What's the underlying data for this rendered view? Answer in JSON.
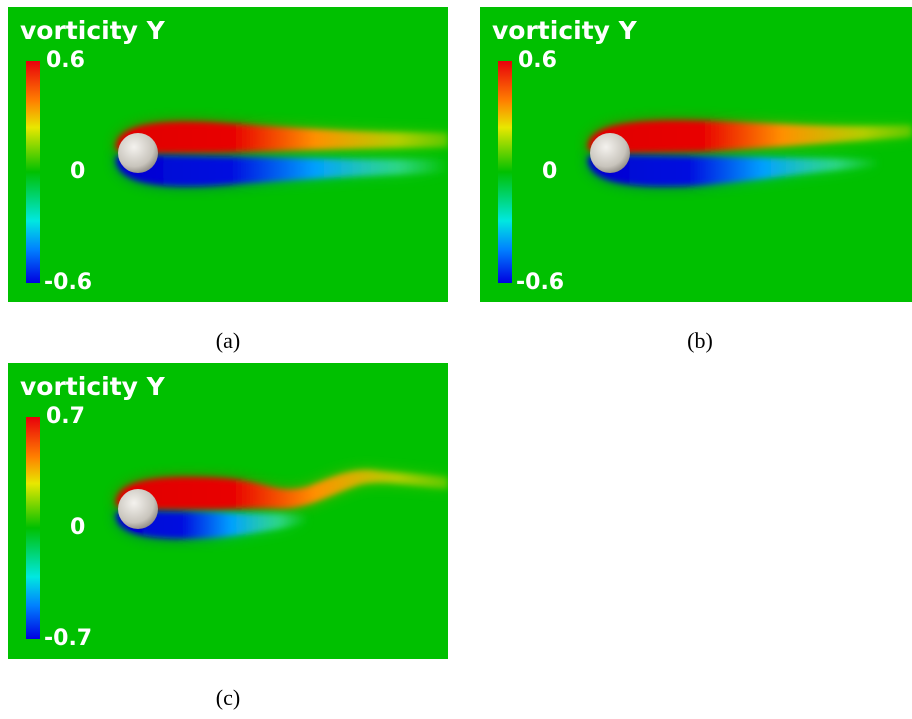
{
  "panels": [
    {
      "title": "vorticity Y",
      "max": 0.6,
      "zero": 0,
      "min": -0.6,
      "caption": "(a)"
    },
    {
      "title": "vorticity Y",
      "max": 0.6,
      "zero": 0,
      "min": -0.6,
      "caption": "(b)"
    },
    {
      "title": "vorticity Y",
      "max": 0.7,
      "zero": 0,
      "min": -0.7,
      "caption": "(c)"
    }
  ]
}
